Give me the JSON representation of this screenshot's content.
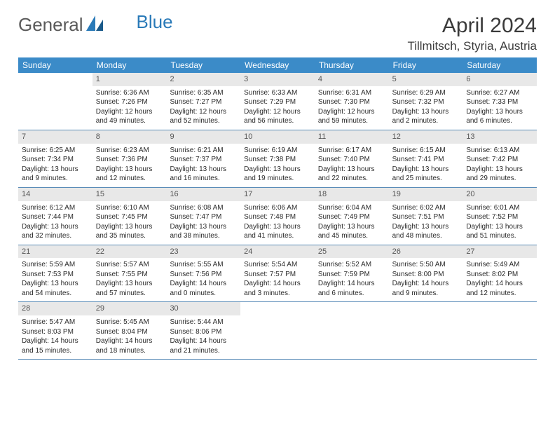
{
  "logo": {
    "part1": "General",
    "part2": "Blue"
  },
  "title": "April 2024",
  "location": "Tillmitsch, Styria, Austria",
  "colors": {
    "header_bg": "#3b8bc8",
    "header_text": "#ffffff",
    "daynum_bg": "#e8e8e8",
    "week_border": "#5a8cb8",
    "body_text": "#2a2a2a"
  },
  "day_labels": [
    "Sunday",
    "Monday",
    "Tuesday",
    "Wednesday",
    "Thursday",
    "Friday",
    "Saturday"
  ],
  "weeks": [
    [
      {
        "day": "",
        "sunrise": "",
        "sunset": "",
        "daylight": "",
        "empty": true
      },
      {
        "day": "1",
        "sunrise": "Sunrise: 6:36 AM",
        "sunset": "Sunset: 7:26 PM",
        "daylight": "Daylight: 12 hours and 49 minutes."
      },
      {
        "day": "2",
        "sunrise": "Sunrise: 6:35 AM",
        "sunset": "Sunset: 7:27 PM",
        "daylight": "Daylight: 12 hours and 52 minutes."
      },
      {
        "day": "3",
        "sunrise": "Sunrise: 6:33 AM",
        "sunset": "Sunset: 7:29 PM",
        "daylight": "Daylight: 12 hours and 56 minutes."
      },
      {
        "day": "4",
        "sunrise": "Sunrise: 6:31 AM",
        "sunset": "Sunset: 7:30 PM",
        "daylight": "Daylight: 12 hours and 59 minutes."
      },
      {
        "day": "5",
        "sunrise": "Sunrise: 6:29 AM",
        "sunset": "Sunset: 7:32 PM",
        "daylight": "Daylight: 13 hours and 2 minutes."
      },
      {
        "day": "6",
        "sunrise": "Sunrise: 6:27 AM",
        "sunset": "Sunset: 7:33 PM",
        "daylight": "Daylight: 13 hours and 6 minutes."
      }
    ],
    [
      {
        "day": "7",
        "sunrise": "Sunrise: 6:25 AM",
        "sunset": "Sunset: 7:34 PM",
        "daylight": "Daylight: 13 hours and 9 minutes."
      },
      {
        "day": "8",
        "sunrise": "Sunrise: 6:23 AM",
        "sunset": "Sunset: 7:36 PM",
        "daylight": "Daylight: 13 hours and 12 minutes."
      },
      {
        "day": "9",
        "sunrise": "Sunrise: 6:21 AM",
        "sunset": "Sunset: 7:37 PM",
        "daylight": "Daylight: 13 hours and 16 minutes."
      },
      {
        "day": "10",
        "sunrise": "Sunrise: 6:19 AM",
        "sunset": "Sunset: 7:38 PM",
        "daylight": "Daylight: 13 hours and 19 minutes."
      },
      {
        "day": "11",
        "sunrise": "Sunrise: 6:17 AM",
        "sunset": "Sunset: 7:40 PM",
        "daylight": "Daylight: 13 hours and 22 minutes."
      },
      {
        "day": "12",
        "sunrise": "Sunrise: 6:15 AM",
        "sunset": "Sunset: 7:41 PM",
        "daylight": "Daylight: 13 hours and 25 minutes."
      },
      {
        "day": "13",
        "sunrise": "Sunrise: 6:13 AM",
        "sunset": "Sunset: 7:42 PM",
        "daylight": "Daylight: 13 hours and 29 minutes."
      }
    ],
    [
      {
        "day": "14",
        "sunrise": "Sunrise: 6:12 AM",
        "sunset": "Sunset: 7:44 PM",
        "daylight": "Daylight: 13 hours and 32 minutes."
      },
      {
        "day": "15",
        "sunrise": "Sunrise: 6:10 AM",
        "sunset": "Sunset: 7:45 PM",
        "daylight": "Daylight: 13 hours and 35 minutes."
      },
      {
        "day": "16",
        "sunrise": "Sunrise: 6:08 AM",
        "sunset": "Sunset: 7:47 PM",
        "daylight": "Daylight: 13 hours and 38 minutes."
      },
      {
        "day": "17",
        "sunrise": "Sunrise: 6:06 AM",
        "sunset": "Sunset: 7:48 PM",
        "daylight": "Daylight: 13 hours and 41 minutes."
      },
      {
        "day": "18",
        "sunrise": "Sunrise: 6:04 AM",
        "sunset": "Sunset: 7:49 PM",
        "daylight": "Daylight: 13 hours and 45 minutes."
      },
      {
        "day": "19",
        "sunrise": "Sunrise: 6:02 AM",
        "sunset": "Sunset: 7:51 PM",
        "daylight": "Daylight: 13 hours and 48 minutes."
      },
      {
        "day": "20",
        "sunrise": "Sunrise: 6:01 AM",
        "sunset": "Sunset: 7:52 PM",
        "daylight": "Daylight: 13 hours and 51 minutes."
      }
    ],
    [
      {
        "day": "21",
        "sunrise": "Sunrise: 5:59 AM",
        "sunset": "Sunset: 7:53 PM",
        "daylight": "Daylight: 13 hours and 54 minutes."
      },
      {
        "day": "22",
        "sunrise": "Sunrise: 5:57 AM",
        "sunset": "Sunset: 7:55 PM",
        "daylight": "Daylight: 13 hours and 57 minutes."
      },
      {
        "day": "23",
        "sunrise": "Sunrise: 5:55 AM",
        "sunset": "Sunset: 7:56 PM",
        "daylight": "Daylight: 14 hours and 0 minutes."
      },
      {
        "day": "24",
        "sunrise": "Sunrise: 5:54 AM",
        "sunset": "Sunset: 7:57 PM",
        "daylight": "Daylight: 14 hours and 3 minutes."
      },
      {
        "day": "25",
        "sunrise": "Sunrise: 5:52 AM",
        "sunset": "Sunset: 7:59 PM",
        "daylight": "Daylight: 14 hours and 6 minutes."
      },
      {
        "day": "26",
        "sunrise": "Sunrise: 5:50 AM",
        "sunset": "Sunset: 8:00 PM",
        "daylight": "Daylight: 14 hours and 9 minutes."
      },
      {
        "day": "27",
        "sunrise": "Sunrise: 5:49 AM",
        "sunset": "Sunset: 8:02 PM",
        "daylight": "Daylight: 14 hours and 12 minutes."
      }
    ],
    [
      {
        "day": "28",
        "sunrise": "Sunrise: 5:47 AM",
        "sunset": "Sunset: 8:03 PM",
        "daylight": "Daylight: 14 hours and 15 minutes."
      },
      {
        "day": "29",
        "sunrise": "Sunrise: 5:45 AM",
        "sunset": "Sunset: 8:04 PM",
        "daylight": "Daylight: 14 hours and 18 minutes."
      },
      {
        "day": "30",
        "sunrise": "Sunrise: 5:44 AM",
        "sunset": "Sunset: 8:06 PM",
        "daylight": "Daylight: 14 hours and 21 minutes."
      },
      {
        "day": "",
        "sunrise": "",
        "sunset": "",
        "daylight": "",
        "empty": true
      },
      {
        "day": "",
        "sunrise": "",
        "sunset": "",
        "daylight": "",
        "empty": true
      },
      {
        "day": "",
        "sunrise": "",
        "sunset": "",
        "daylight": "",
        "empty": true
      },
      {
        "day": "",
        "sunrise": "",
        "sunset": "",
        "daylight": "",
        "empty": true
      }
    ]
  ]
}
